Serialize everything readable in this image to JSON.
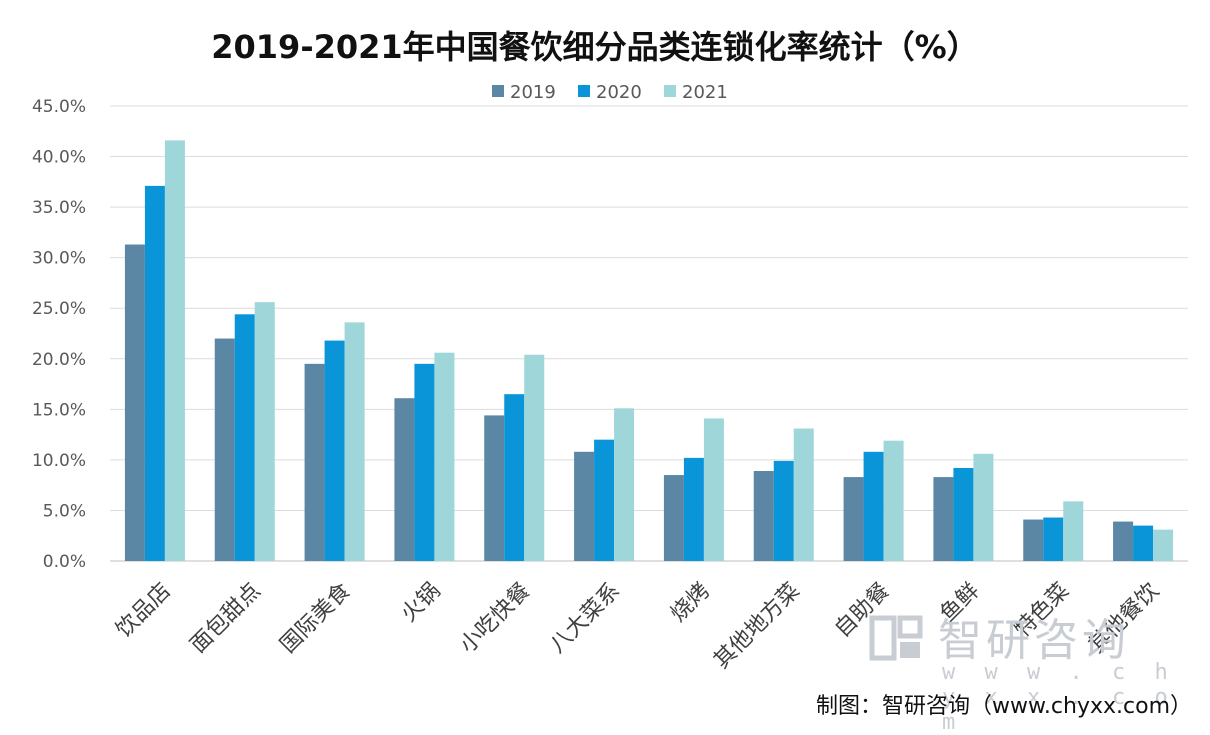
{
  "chart_data": {
    "type": "bar",
    "title": "2019-2021年中国餐饮细分品类连锁化率统计（%）",
    "categories": [
      "饮品店",
      "面包甜点",
      "国际美食",
      "火锅",
      "小吃快餐",
      "八大菜系",
      "烧烤",
      "其他地方菜",
      "自助餐",
      "鱼鲜",
      "特色菜",
      "其他餐饮"
    ],
    "series": [
      {
        "name": "2019",
        "color": "#5b86a4",
        "values": [
          31.3,
          22.0,
          19.5,
          16.1,
          14.4,
          10.8,
          8.5,
          8.9,
          8.3,
          8.3,
          4.1,
          3.9
        ]
      },
      {
        "name": "2020",
        "color": "#0b95d9",
        "values": [
          37.1,
          24.4,
          21.8,
          19.5,
          16.5,
          12.0,
          10.2,
          9.9,
          10.8,
          9.2,
          4.3,
          3.5
        ]
      },
      {
        "name": "2021",
        "color": "#9ed6da",
        "values": [
          41.6,
          25.6,
          23.6,
          20.6,
          20.4,
          15.1,
          14.1,
          13.1,
          11.9,
          10.6,
          5.9,
          3.1
        ]
      }
    ],
    "ylim": [
      0,
      45
    ],
    "yticks": [
      "0.0%",
      "5.0%",
      "10.0%",
      "15.0%",
      "20.0%",
      "25.0%",
      "30.0%",
      "35.0%",
      "40.0%",
      "45.0%"
    ],
    "grid": true,
    "legend_position": "top-center"
  },
  "watermark": {
    "cn": "智研咨询",
    "url": "w w w . c h y x x . c o m",
    "logo_icon": "chyxx-logo-icon"
  },
  "source_note": "制图：智研咨询（www.chyxx.com）"
}
